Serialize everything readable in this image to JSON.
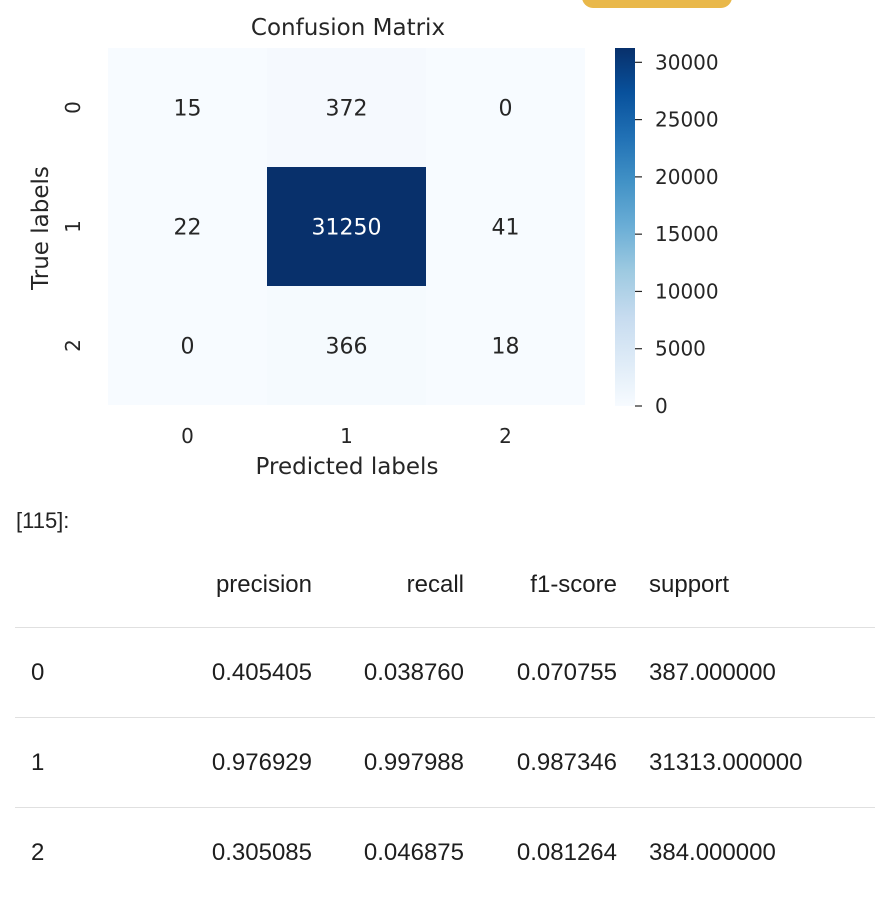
{
  "chart_data": {
    "type": "heatmap",
    "title": "Confusion Matrix",
    "xlabel": "Predicted labels",
    "ylabel": "True labels",
    "x_categories": [
      "0",
      "1",
      "2"
    ],
    "y_categories": [
      "0",
      "1",
      "2"
    ],
    "values": [
      [
        15,
        372,
        0
      ],
      [
        22,
        31250,
        41
      ],
      [
        0,
        366,
        18
      ]
    ],
    "colorscale": "Blues",
    "vmin": 0,
    "vmax": 31250,
    "colorbar_ticks": [
      0,
      5000,
      10000,
      15000,
      20000,
      25000,
      30000
    ]
  },
  "prompt": "[115]:",
  "report_table": {
    "columns": [
      "",
      "precision",
      "recall",
      "f1-score",
      "support"
    ],
    "rows": [
      [
        "0",
        "0.405405",
        "0.038760",
        "0.070755",
        "387.000000"
      ],
      [
        "1",
        "0.976929",
        "0.997988",
        "0.987346",
        "31313.000000"
      ],
      [
        "2",
        "0.305085",
        "0.046875",
        "0.081264",
        "384.000000"
      ]
    ]
  }
}
